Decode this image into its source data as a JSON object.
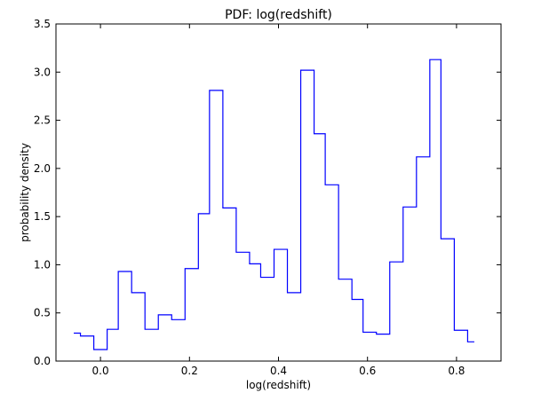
{
  "chart_data": {
    "type": "line",
    "drawstyle": "steps",
    "title": "PDF: log(redshift)",
    "xlabel": "log(redshift)",
    "ylabel": "probability density",
    "xlim": [
      -0.1,
      0.9
    ],
    "ylim": [
      0.0,
      3.5
    ],
    "xticks": [
      0.0,
      0.2,
      0.4,
      0.6,
      0.8
    ],
    "xtick_labels": [
      "0.0",
      "0.2",
      "0.4",
      "0.6",
      "0.8"
    ],
    "yticks": [
      0.0,
      0.5,
      1.0,
      1.5,
      2.0,
      2.5,
      3.0,
      3.5
    ],
    "ytick_labels": [
      "0.0",
      "0.5",
      "1.0",
      "1.5",
      "2.0",
      "2.5",
      "3.0",
      "3.5"
    ],
    "grid": false,
    "series": [
      {
        "color": "#0000ff",
        "bin_edges": [
          -0.06,
          -0.045,
          -0.015,
          0.015,
          0.04,
          0.07,
          0.1,
          0.13,
          0.16,
          0.19,
          0.22,
          0.245,
          0.275,
          0.305,
          0.335,
          0.36,
          0.39,
          0.42,
          0.45,
          0.48,
          0.505,
          0.535,
          0.565,
          0.59,
          0.62,
          0.65,
          0.68,
          0.71,
          0.74,
          0.765,
          0.795,
          0.825,
          0.84
        ],
        "values": [
          0.29,
          0.26,
          0.12,
          0.33,
          0.93,
          0.71,
          0.33,
          0.48,
          0.43,
          0.96,
          1.53,
          2.81,
          1.59,
          1.13,
          1.01,
          0.87,
          1.16,
          0.71,
          3.02,
          2.36,
          1.83,
          0.85,
          0.64,
          0.3,
          0.28,
          1.03,
          1.6,
          2.12,
          3.13,
          1.27,
          0.32,
          0.2
        ]
      }
    ]
  }
}
